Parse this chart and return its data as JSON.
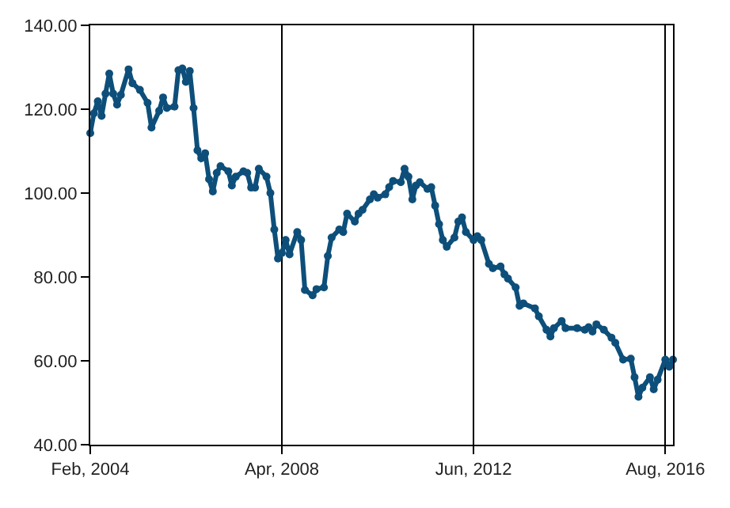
{
  "chart_data": {
    "type": "line",
    "marker": "circle",
    "line_style": "solid",
    "grid": "x",
    "legend": false,
    "x": [
      "2004-02",
      "2004-03",
      "2004-04",
      "2004-05",
      "2004-06",
      "2004-07",
      "2004-08",
      "2004-09",
      "2004-10",
      "2004-12",
      "2005-01",
      "2005-03",
      "2005-05",
      "2005-06",
      "2005-08",
      "2005-09",
      "2005-10",
      "2005-12",
      "2006-01",
      "2006-02",
      "2006-03",
      "2006-04",
      "2006-05",
      "2006-06",
      "2006-07",
      "2006-08",
      "2006-09",
      "2006-10",
      "2006-11",
      "2006-12",
      "2007-02",
      "2007-03",
      "2007-04",
      "2007-06",
      "2007-07",
      "2007-08",
      "2007-09",
      "2007-10",
      "2007-12",
      "2008-01",
      "2008-02",
      "2008-03",
      "2008-04",
      "2008-05",
      "2008-06",
      "2008-08",
      "2008-09",
      "2008-10",
      "2008-12",
      "2009-01",
      "2009-03",
      "2009-04",
      "2009-05",
      "2009-07",
      "2009-08",
      "2009-09",
      "2009-11",
      "2009-12",
      "2010-01",
      "2010-03",
      "2010-04",
      "2010-05",
      "2010-07",
      "2010-08",
      "2010-09",
      "2010-11",
      "2010-12",
      "2011-01",
      "2011-02",
      "2011-03",
      "2011-04",
      "2011-06",
      "2011-07",
      "2011-08",
      "2011-09",
      "2011-10",
      "2011-11",
      "2012-01",
      "2012-02",
      "2012-03",
      "2012-04",
      "2012-06",
      "2012-07",
      "2012-08",
      "2012-10",
      "2012-11",
      "2013-01",
      "2013-02",
      "2013-03",
      "2013-05",
      "2013-06",
      "2013-07",
      "2013-10",
      "2013-11",
      "2014-01",
      "2014-02",
      "2014-03",
      "2014-05",
      "2014-06",
      "2014-09",
      "2014-11",
      "2014-12",
      "2015-01",
      "2015-02",
      "2015-04",
      "2015-06",
      "2015-07",
      "2015-09",
      "2015-11",
      "2015-12",
      "2016-01",
      "2016-02",
      "2016-04",
      "2016-05",
      "2016-06",
      "2016-08",
      "2016-09",
      "2016-10"
    ],
    "series": [
      {
        "color": "#0d4f7a",
        "values": [
          114.3,
          119,
          121.9,
          118.4,
          123.7,
          128.5,
          123.7,
          121.1,
          123.4,
          129.5,
          126.2,
          124.6,
          121.5,
          115.6,
          119.6,
          122.8,
          120.3,
          120.6,
          129.3,
          129.7,
          126.5,
          129.1,
          120.3,
          110.2,
          108.3,
          109.5,
          103.3,
          100.4,
          104.8,
          106.4,
          105.2,
          101.8,
          103.9,
          105.2,
          104.8,
          101.3,
          101.3,
          105.8,
          103.9,
          100,
          91.3,
          84.4,
          85.7,
          88.8,
          85.4,
          90.7,
          88.8,
          76.9,
          75.6,
          77.1,
          77.5,
          85,
          89.4,
          91.3,
          90.7,
          95.1,
          93.2,
          95.1,
          96,
          98.5,
          99.7,
          98.9,
          99.7,
          101.4,
          102.9,
          102.6,
          105.8,
          103.9,
          98.5,
          101.8,
          102.6,
          101,
          101.4,
          97,
          92.6,
          88.8,
          87.2,
          89.4,
          93.2,
          94.2,
          90.7,
          88.8,
          89.7,
          88.8,
          83.1,
          82.1,
          82.5,
          80.6,
          79.6,
          77.5,
          73.1,
          73.7,
          72.5,
          70.6,
          67.4,
          65.8,
          67.8,
          69.5,
          67.8,
          67.8,
          67.4,
          68,
          67,
          68.7,
          67.4,
          65.5,
          64.3,
          60.3,
          60.5,
          56.1,
          51.4,
          53.6,
          56.1,
          53.2,
          55.5,
          60.3,
          58.6,
          60.3
        ]
      }
    ],
    "xlim": [
      "2004-02",
      "2016-10"
    ],
    "xticks": [
      {
        "value": "2004-02",
        "label": "Feb, 2004"
      },
      {
        "value": "2008-04",
        "label": "Apr, 2008"
      },
      {
        "value": "2012-06",
        "label": "Jun, 2012"
      },
      {
        "value": "2016-08",
        "label": "Aug, 2016"
      }
    ],
    "ylim": [
      40,
      140
    ],
    "yticks": [
      {
        "value": 40,
        "label": "40.00"
      },
      {
        "value": 60,
        "label": "60.00"
      },
      {
        "value": 80,
        "label": "80.00"
      },
      {
        "value": 100,
        "label": "100.00"
      },
      {
        "value": 120,
        "label": "120.00"
      },
      {
        "value": 140,
        "label": "140.00"
      }
    ]
  }
}
